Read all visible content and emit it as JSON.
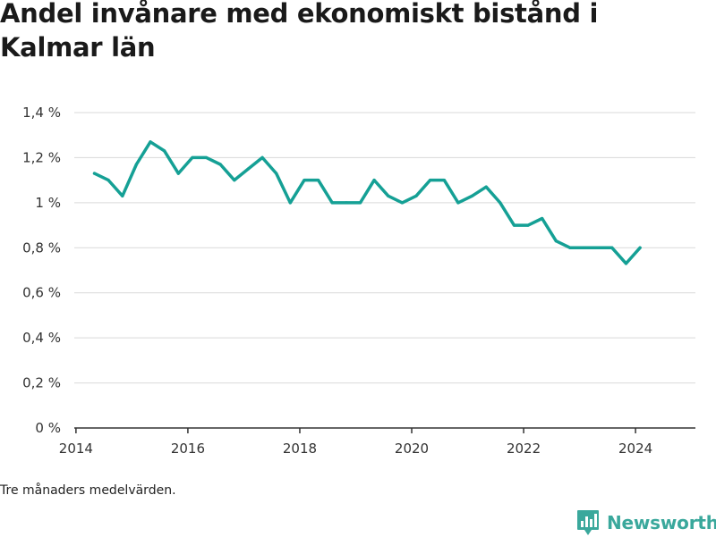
{
  "title": "Andel invånare med ekonomiskt bistånd i Kalmar län",
  "note": "Tre månaders medelvärden.",
  "brand": {
    "name": "Newsworthy",
    "logo_icon": "newsworthy-chart-logo-icon"
  },
  "colors": {
    "line": "#15a095",
    "grid": "#d9d9d9",
    "axis": "#333333",
    "brand": "#3aa89c"
  },
  "chart_data": {
    "type": "line",
    "title": "Andel invånare med ekonomiskt bistånd i Kalmar län",
    "xlabel": "",
    "ylabel": "",
    "xlim": [
      2013.97,
      2025.07
    ],
    "ylim": [
      0,
      1.4
    ],
    "x_ticks": [
      {
        "value": 2014,
        "label": "2014"
      },
      {
        "value": 2016,
        "label": "2016"
      },
      {
        "value": 2018,
        "label": "2018"
      },
      {
        "value": 2020,
        "label": "2020"
      },
      {
        "value": 2022,
        "label": "2022"
      },
      {
        "value": 2024,
        "label": "2024"
      }
    ],
    "y_ticks": [
      {
        "value": 0,
        "label": "0 %"
      },
      {
        "value": 0.2,
        "label": "0,2 %"
      },
      {
        "value": 0.4,
        "label": "0,4 %"
      },
      {
        "value": 0.6,
        "label": "0,6 %"
      },
      {
        "value": 0.8,
        "label": "0,8 %"
      },
      {
        "value": 1.0,
        "label": "1 %"
      },
      {
        "value": 1.2,
        "label": "1,2 %"
      },
      {
        "value": 1.4,
        "label": "1,4 %"
      }
    ],
    "grid": true,
    "legend": "none",
    "series": [
      {
        "x": [
          2014.33,
          2014.58,
          2014.83,
          2015.08,
          2015.33,
          2015.58,
          2015.83,
          2016.08,
          2016.33,
          2016.58,
          2016.83,
          2017.08,
          2017.33,
          2017.58,
          2017.83,
          2018.08,
          2018.33,
          2018.58,
          2018.83,
          2019.08,
          2019.33,
          2019.58,
          2019.83,
          2020.08,
          2020.33,
          2020.58,
          2020.83,
          2021.08,
          2021.33,
          2021.58,
          2021.83,
          2022.08,
          2022.33,
          2022.58,
          2022.83,
          2023.08,
          2023.33,
          2023.58,
          2023.83,
          2024.08
        ],
        "values": [
          1.13,
          1.1,
          1.03,
          1.17,
          1.27,
          1.23,
          1.13,
          1.2,
          1.2,
          1.17,
          1.1,
          1.15,
          1.2,
          1.13,
          1.0,
          1.1,
          1.1,
          1.0,
          1.0,
          1.0,
          1.1,
          1.03,
          1.0,
          1.03,
          1.1,
          1.1,
          1.0,
          1.03,
          1.07,
          1.0,
          0.9,
          0.9,
          0.93,
          0.83,
          0.8,
          0.8,
          0.8,
          0.8,
          0.73,
          0.8
        ]
      }
    ]
  }
}
